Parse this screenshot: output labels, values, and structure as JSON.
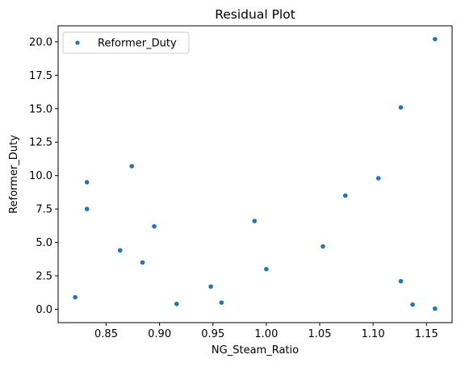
{
  "chart_data": {
    "type": "scatter",
    "title": "Residual Plot",
    "xlabel": "NG_Steam_Ratio",
    "ylabel": "Reformer_Duty",
    "xlim": [
      0.805,
      1.174
    ],
    "ylim": [
      -1.0,
      21.2
    ],
    "xticks": [
      0.85,
      0.9,
      0.95,
      1.0,
      1.05,
      1.1,
      1.15
    ],
    "xtick_labels": [
      "0.85",
      "0.90",
      "0.95",
      "1.00",
      "1.05",
      "1.10",
      "1.15"
    ],
    "yticks": [
      0.0,
      2.5,
      5.0,
      7.5,
      10.0,
      12.5,
      15.0,
      17.5,
      20.0
    ],
    "ytick_labels": [
      "0.0",
      "2.5",
      "5.0",
      "7.5",
      "10.0",
      "12.5",
      "15.0",
      "17.5",
      "20.0"
    ],
    "grid": false,
    "legend_position": "top-left",
    "series": [
      {
        "name": "Reformer_Duty",
        "color": "#1f77b4",
        "marker": "circle",
        "points": [
          {
            "x": 0.821,
            "y": 0.9
          },
          {
            "x": 0.832,
            "y": 9.5
          },
          {
            "x": 0.832,
            "y": 7.5
          },
          {
            "x": 0.863,
            "y": 4.4
          },
          {
            "x": 0.874,
            "y": 10.7
          },
          {
            "x": 0.884,
            "y": 3.5
          },
          {
            "x": 0.895,
            "y": 6.2
          },
          {
            "x": 0.916,
            "y": 0.4
          },
          {
            "x": 0.948,
            "y": 1.7
          },
          {
            "x": 0.958,
            "y": 0.5
          },
          {
            "x": 0.989,
            "y": 6.6
          },
          {
            "x": 1.0,
            "y": 3.0
          },
          {
            "x": 1.053,
            "y": 4.7
          },
          {
            "x": 1.074,
            "y": 8.5
          },
          {
            "x": 1.105,
            "y": 9.8
          },
          {
            "x": 1.126,
            "y": 15.1
          },
          {
            "x": 1.126,
            "y": 2.1
          },
          {
            "x": 1.137,
            "y": 0.35
          },
          {
            "x": 1.158,
            "y": 20.2
          },
          {
            "x": 1.158,
            "y": 0.05
          }
        ]
      }
    ]
  }
}
